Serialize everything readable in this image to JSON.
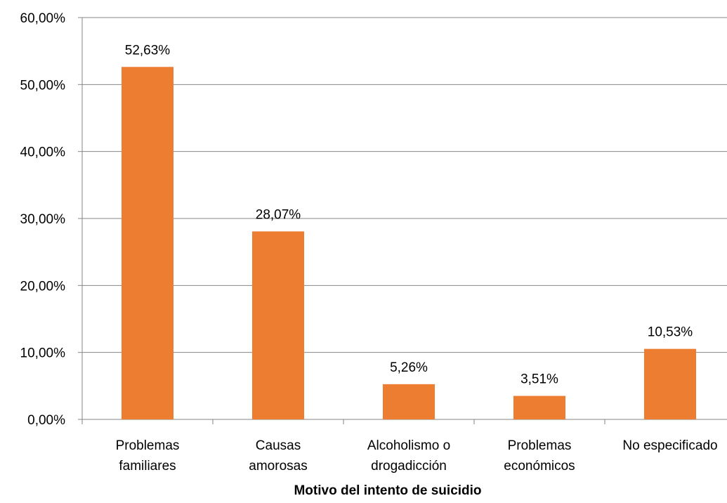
{
  "chart_data": {
    "type": "bar",
    "title": "",
    "xlabel": "Motivo del intento de suicidio",
    "ylabel": "",
    "categories": [
      [
        "Problemas",
        "familiares"
      ],
      [
        "Causas",
        "amorosas"
      ],
      [
        "Alcoholismo o",
        "drogadicción"
      ],
      [
        "Problemas",
        "económicos"
      ],
      [
        "No especificado"
      ]
    ],
    "values": [
      52.63,
      28.07,
      5.26,
      3.51,
      10.53
    ],
    "data_labels": [
      "52,63%",
      "28,07%",
      "5,26%",
      "3,51%",
      "10,53%"
    ],
    "ylim": [
      0,
      60
    ],
    "yticks": [
      0,
      10,
      20,
      30,
      40,
      50,
      60
    ],
    "ytick_labels": [
      "0,00%",
      "10,00%",
      "20,00%",
      "30,00%",
      "40,00%",
      "50,00%",
      "60,00%"
    ],
    "grid": true,
    "legend": "none",
    "colors": {
      "bar": "#ED7D31",
      "grid": "#868686",
      "axis": "#868686"
    }
  }
}
